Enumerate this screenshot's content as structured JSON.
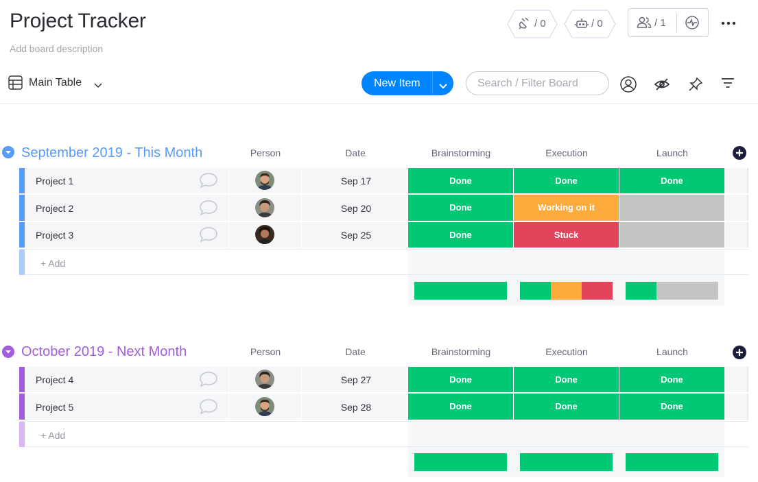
{
  "header": {
    "title": "Project Tracker",
    "description": "Add board description",
    "integrations_count": "/ 0",
    "automations_count": "/ 0",
    "members_count": "/ 1"
  },
  "toolbar": {
    "view_label": "Main Table",
    "new_item_label": "New Item",
    "search_placeholder": "Search / Filter Board"
  },
  "columns": {
    "person": "Person",
    "date": "Date",
    "brainstorming": "Brainstorming",
    "execution": "Execution",
    "launch": "Launch"
  },
  "colors": {
    "done": "#00c875",
    "working": "#fdab3d",
    "stuck": "#e2445c",
    "empty": "#c4c4c4",
    "group1": "#579bfc",
    "group2": "#a25ddc"
  },
  "groups": [
    {
      "title": "September 2019 - This Month",
      "add_label": "+ Add",
      "items": [
        {
          "name": "Project 1",
          "date": "Sep 17",
          "brainstorming": "Done",
          "execution": "Done",
          "launch": "Done"
        },
        {
          "name": "Project 2",
          "date": "Sep 20",
          "brainstorming": "Done",
          "execution": "Working on it",
          "launch": ""
        },
        {
          "name": "Project 3",
          "date": "Sep 25",
          "brainstorming": "Done",
          "execution": "Stuck",
          "launch": ""
        }
      ]
    },
    {
      "title": "October 2019 - Next Month",
      "add_label": "+ Add",
      "items": [
        {
          "name": "Project 4",
          "date": "Sep 27",
          "brainstorming": "Done",
          "execution": "Done",
          "launch": "Done"
        },
        {
          "name": "Project 5",
          "date": "Sep 28",
          "brainstorming": "Done",
          "execution": "Done",
          "launch": "Done"
        }
      ]
    }
  ]
}
